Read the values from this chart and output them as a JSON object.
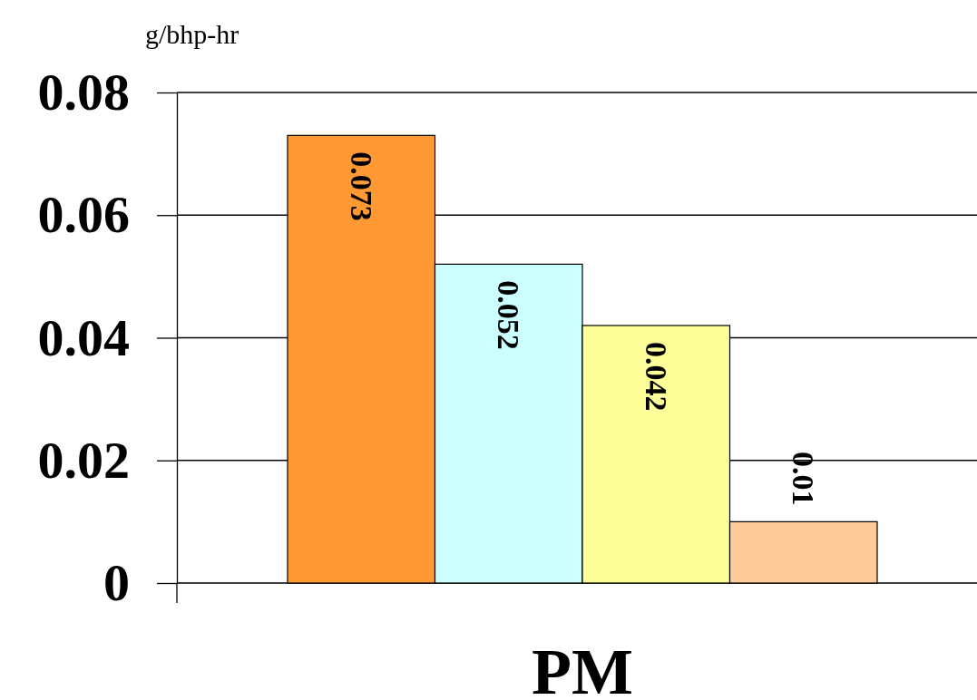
{
  "chart_data": {
    "type": "bar",
    "ylabel": "g/bhp-hr",
    "xlabel": "PM",
    "categories": [
      null,
      null,
      null,
      null
    ],
    "values": [
      0.073,
      0.052,
      0.042,
      0.01
    ],
    "colors": [
      "#ff9933",
      "#ccffff",
      "#ffff99",
      "#ffcc99"
    ],
    "ylim": [
      0,
      0.08
    ],
    "yticks": [
      0,
      0.02,
      0.04,
      0.06,
      0.08
    ],
    "grid": "y",
    "data_labels": true
  }
}
